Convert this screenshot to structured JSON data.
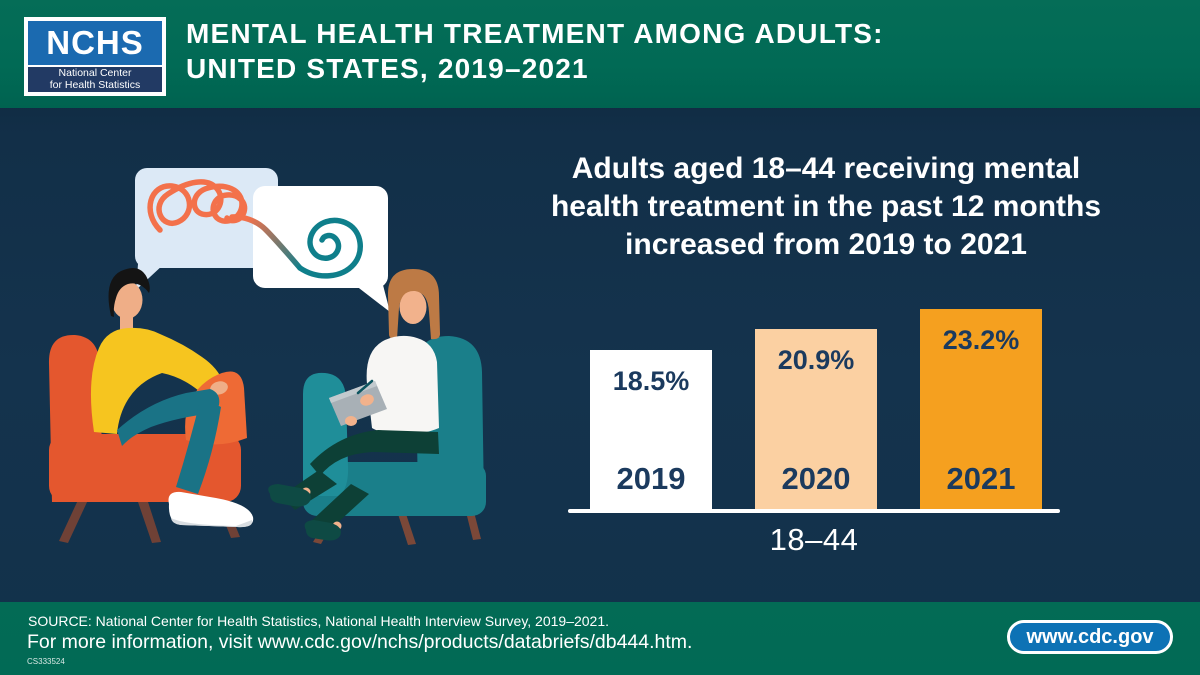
{
  "header": {
    "logo": {
      "acronym": "NCHS",
      "subtitle_line1": "National Center",
      "subtitle_line2": "for Health Statistics"
    },
    "title_line1": "MENTAL HEALTH TREATMENT AMONG ADULTS:",
    "title_line2": "UNITED STATES, 2019–2021"
  },
  "headline": {
    "line1": "Adults aged 18–44 receiving mental",
    "line2": "health treatment in the past 12 months",
    "line3": "increased from 2019 to 2021"
  },
  "illustration": {
    "alt": "Person in an orange armchair talking to a therapist with a clipboard in a teal armchair; a tangled scribble in one speech bubble becomes a smooth spiral in the other"
  },
  "chart_data": {
    "type": "bar",
    "title": "Adults aged 18–44 receiving mental health treatment in the past 12 months increased from 2019 to 2021",
    "categories": [
      "2019",
      "2020",
      "2021"
    ],
    "values": [
      18.5,
      20.9,
      23.2
    ],
    "value_labels": [
      "18.5%",
      "20.9%",
      "23.2%"
    ],
    "xlabel": "18–44",
    "ylabel": "",
    "ylim": [
      0,
      25
    ],
    "grid": false,
    "legend": false,
    "bar_colors": [
      "#ffffff",
      "#fbd0a2",
      "#f5a01f"
    ],
    "bar_label_color": "#1b3a5e"
  },
  "footer": {
    "source": "SOURCE: National Center for Health Statistics, National Health Interview Survey, 2019–2021.",
    "more_info": "For more information, visit www.cdc.gov/nchs/products/databriefs/db444.htm.",
    "doc_number": "CS333524",
    "cdc_button_label": "www.cdc.gov"
  },
  "colors": {
    "header_green": "#016a55",
    "background_navy": "#14334d",
    "logo_blue": "#1b6ab0",
    "logo_navy": "#223a64",
    "cdc_button_blue": "#0d72b5",
    "scribble_orange": "#f3714b",
    "spiral_teal": "#0f7f8b"
  }
}
